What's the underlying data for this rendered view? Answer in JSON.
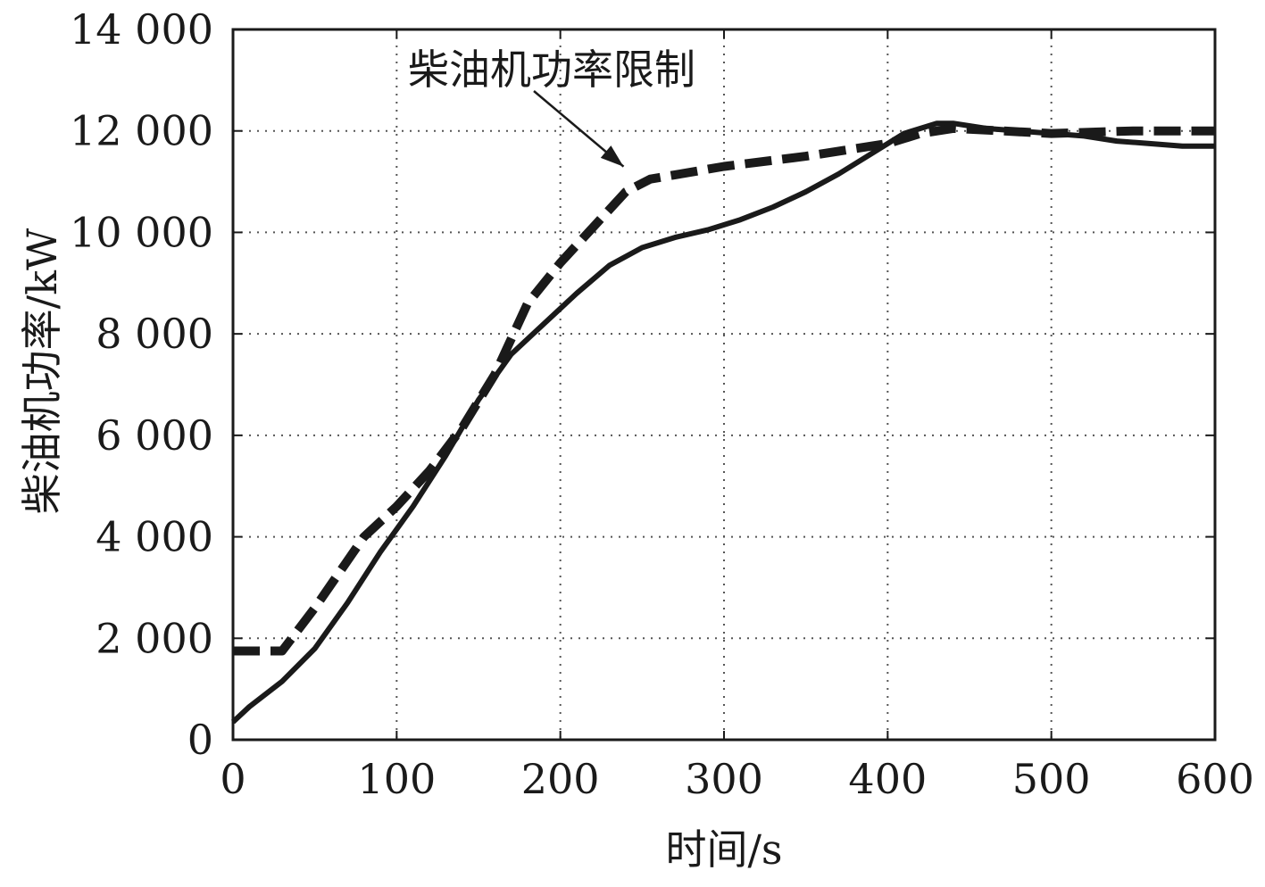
{
  "chart_data": {
    "type": "line",
    "xlabel": "时间/s",
    "ylabel": "柴油机功率/kW",
    "xlim": [
      0,
      600
    ],
    "ylim": [
      0,
      14000
    ],
    "x_ticks": [
      0,
      100,
      200,
      300,
      400,
      500,
      600
    ],
    "x_tick_labels": [
      "0",
      "100",
      "200",
      "300",
      "400",
      "500",
      "600"
    ],
    "y_ticks": [
      0,
      2000,
      4000,
      6000,
      8000,
      10000,
      12000,
      14000
    ],
    "y_tick_labels": [
      "0",
      "2 000",
      "4 000",
      "6 000",
      "8 000",
      "10 000",
      "12 000",
      "14 000"
    ],
    "grid": true,
    "annotation": {
      "text": "柴油机功率限制",
      "points_to": [
        255,
        11050
      ]
    },
    "series": [
      {
        "style": "solid",
        "color": "#1a1a1a",
        "x": [
          0,
          10,
          30,
          50,
          70,
          90,
          110,
          130,
          150,
          170,
          190,
          210,
          230,
          250,
          270,
          290,
          310,
          330,
          350,
          370,
          390,
          410,
          430,
          440,
          460,
          480,
          500,
          520,
          540,
          560,
          580,
          600
        ],
        "y": [
          350,
          650,
          1150,
          1800,
          2700,
          3700,
          4600,
          5600,
          6700,
          7600,
          8200,
          8800,
          9350,
          9700,
          9900,
          10050,
          10250,
          10500,
          10800,
          11150,
          11550,
          11950,
          12150,
          12150,
          12050,
          12000,
          11950,
          11900,
          11800,
          11750,
          11700,
          11700
        ]
      },
      {
        "style": "dashed",
        "color": "#1a1a1a",
        "x": [
          0,
          30,
          50,
          80,
          100,
          120,
          140,
          160,
          180,
          200,
          220,
          240,
          255,
          300,
          350,
          400,
          420,
          440,
          470,
          500,
          550,
          600
        ],
        "y": [
          1750,
          1750,
          2600,
          4000,
          4600,
          5300,
          6150,
          7200,
          8600,
          9400,
          10100,
          10800,
          11050,
          11300,
          11500,
          11750,
          11950,
          12050,
          12000,
          11950,
          12000,
          12000
        ]
      }
    ]
  }
}
